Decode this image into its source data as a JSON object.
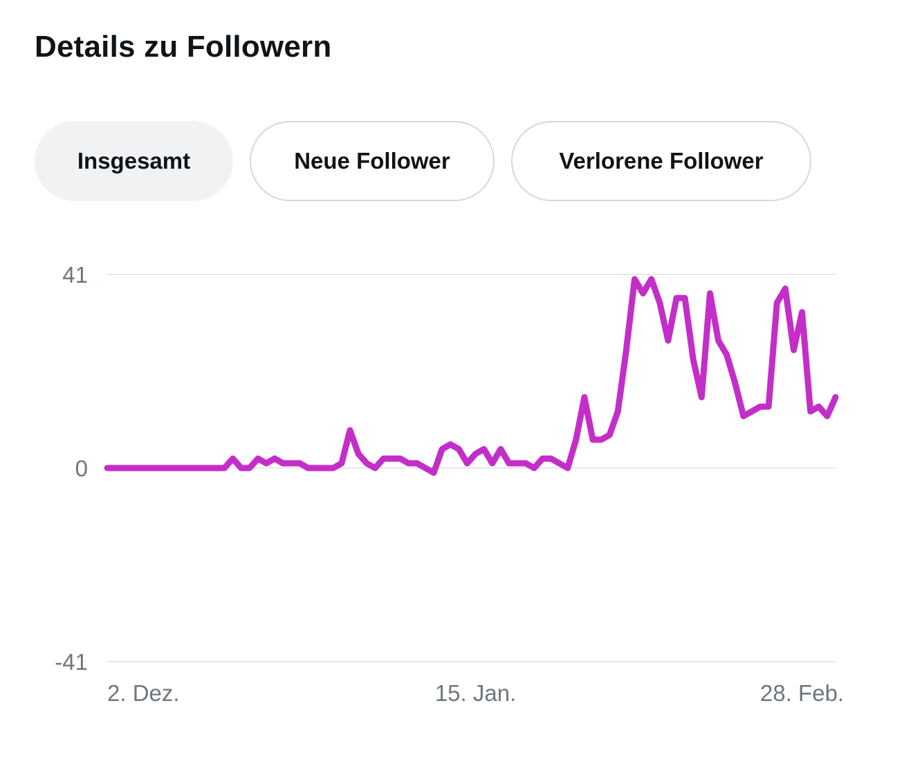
{
  "header": {
    "title": "Details zu Followern"
  },
  "tabs": [
    {
      "label": "Insgesamt",
      "active": true
    },
    {
      "label": "Neue Follower",
      "active": false
    },
    {
      "label": "Verlorene Follower",
      "active": false
    }
  ],
  "colors": {
    "series": "#c42ec8",
    "grid": "#e6e9eb",
    "tick_text": "#6e767d"
  },
  "chart_data": {
    "type": "line",
    "title": "",
    "xlabel": "",
    "ylabel": "",
    "ylim": [
      -41,
      41
    ],
    "yticks": [
      {
        "value": 41,
        "label": "41"
      },
      {
        "value": 0,
        "label": "0"
      },
      {
        "value": -41,
        "label": "-41"
      }
    ],
    "xticks": [
      {
        "index": 0,
        "label": "2. Dez."
      },
      {
        "index": 44,
        "label": "15. Jan."
      },
      {
        "index": 88,
        "label": "28. Feb."
      }
    ],
    "series": [
      {
        "name": "Insgesamt",
        "values": [
          0,
          0,
          0,
          0,
          0,
          0,
          0,
          0,
          0,
          0,
          0,
          0,
          0,
          0,
          0,
          2,
          0,
          0,
          2,
          1,
          2,
          1,
          1,
          1,
          0,
          0,
          0,
          0,
          1,
          8,
          3,
          1,
          0,
          2,
          2,
          2,
          1,
          1,
          0,
          -1,
          4,
          5,
          4,
          1,
          3,
          4,
          1,
          4,
          1,
          1,
          1,
          0,
          2,
          2,
          1,
          0,
          6,
          15,
          6,
          6,
          7,
          12,
          25,
          40,
          37,
          40,
          35,
          27,
          36,
          36,
          23,
          15,
          37,
          27,
          24,
          18,
          11,
          12,
          13,
          13,
          35,
          38,
          25,
          33,
          12,
          13,
          11,
          15
        ]
      }
    ]
  }
}
